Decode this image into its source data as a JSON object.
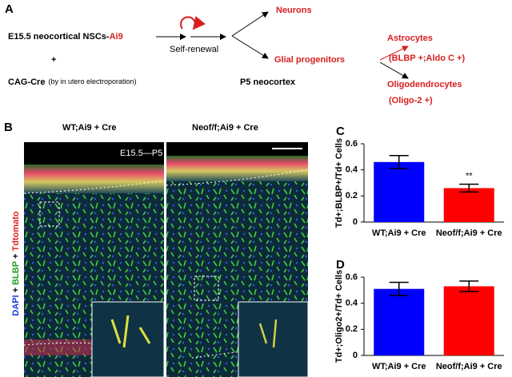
{
  "diagram": {
    "label": "A",
    "source": "E15.5 neocortical NSCs-",
    "source_tag": "Ai9",
    "plus": "+",
    "cre": "CAG-Cre",
    "cre_note": "(by in utero electroporation)",
    "loop": "Self-renewal",
    "stage": "P5 neocortex",
    "neurons": "Neurons",
    "glia": "Glial progenitors",
    "astro": "Astrocytes",
    "astro_markers": "(BLBP +;Aldo C +)",
    "oligo": "Oligodendrocytes",
    "oligo_markers": "(Oligo-2 +)"
  },
  "images": {
    "label": "B",
    "left_title": "WT;Ai9 + Cre",
    "right_title": "Neof/f;Ai9 + Cre",
    "timeline": "E15.5—P5",
    "stain": [
      "DAPI",
      "+",
      "BLBP",
      "+",
      "Tdtomato"
    ]
  },
  "chart_data": [
    {
      "type": "bar",
      "panel": "C",
      "ylabel": "Td+;BLBP+/Td+ Cells",
      "categories": [
        "WT;Ai9 + Cre",
        "Neof/f;Ai9 + Cre"
      ],
      "values": [
        0.46,
        0.26
      ],
      "errors": [
        0.05,
        0.03
      ],
      "colors": [
        "#0000ff",
        "#ff0000"
      ],
      "annotation": "**",
      "ylim": [
        0,
        0.6
      ],
      "yticks": [
        0,
        0.2,
        0.4,
        0.6
      ]
    },
    {
      "type": "bar",
      "panel": "D",
      "ylabel": "Td+;Oligo2+/Td+ Cells",
      "categories": [
        "WT;Ai9 + Cre",
        "Neof/f;Ai9 + Cre"
      ],
      "values": [
        0.51,
        0.53
      ],
      "errors": [
        0.05,
        0.04
      ],
      "colors": [
        "#0000ff",
        "#ff0000"
      ],
      "ylim": [
        0,
        0.6
      ],
      "yticks": [
        0,
        0.2,
        0.4,
        0.6
      ]
    }
  ]
}
